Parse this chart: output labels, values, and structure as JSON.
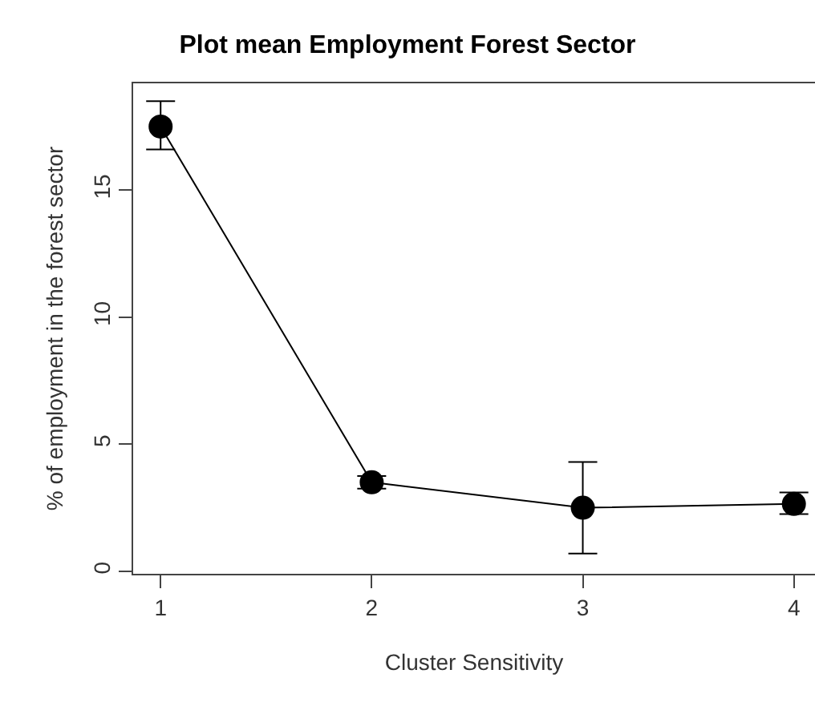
{
  "chart_data": {
    "type": "line",
    "title": "Plot mean Employment Forest Sector",
    "xlabel": "Cluster Sensitivity",
    "ylabel": "% of employment in the forest sector",
    "x": [
      1,
      2,
      3,
      4
    ],
    "series": [
      {
        "color": "#000000",
        "values": [
          17.5,
          3.5,
          2.5,
          2.65
        ],
        "errors": [
          [
            16.6,
            18.5
          ],
          [
            3.25,
            3.75
          ],
          [
            0.7,
            4.3
          ],
          [
            2.25,
            3.1
          ]
        ]
      }
    ],
    "xlim": [
      0.87,
      4.1
    ],
    "xticks": [
      1,
      2,
      3,
      4
    ],
    "ylim": [
      -0.1,
      19.2
    ],
    "yticks": [
      0,
      5,
      10,
      15
    ],
    "marker": "circle",
    "line_style": "solid"
  }
}
